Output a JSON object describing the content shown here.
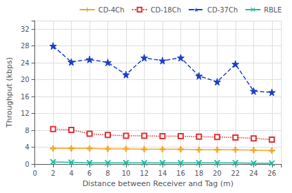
{
  "chart_data": {
    "type": "line",
    "xlabel": "Distance between Receiver and Tag (m)",
    "ylabel": "Throughput (kbps)",
    "x": [
      2,
      4,
      6,
      8,
      10,
      12,
      14,
      16,
      18,
      20,
      22,
      24,
      26
    ],
    "series": [
      {
        "name": "CD-4Ch",
        "color": "#f5a623",
        "marker": "plus",
        "line_style": "solid",
        "values": [
          3.7,
          3.7,
          3.7,
          3.6,
          3.6,
          3.5,
          3.5,
          3.5,
          3.4,
          3.4,
          3.4,
          3.3,
          3.2
        ]
      },
      {
        "name": "CD-18Ch",
        "color": "#e03030",
        "marker": "square",
        "line_style": "dotted",
        "values": [
          8.3,
          8.1,
          7.2,
          6.9,
          6.7,
          6.7,
          6.6,
          6.6,
          6.5,
          6.4,
          6.3,
          6.1,
          5.8
        ]
      },
      {
        "name": "CD-37Ch",
        "color": "#1a3fc4",
        "marker": "star",
        "line_style": "dashed",
        "values": [
          28.0,
          24.2,
          24.8,
          24.1,
          21.2,
          25.2,
          24.5,
          25.2,
          20.9,
          19.5,
          23.7,
          17.3,
          17.0
        ]
      },
      {
        "name": "RBLE",
        "color": "#20b8a0",
        "marker": "x",
        "line_style": "solid",
        "values": [
          0.5,
          0.4,
          0.3,
          0.3,
          0.3,
          0.3,
          0.3,
          0.3,
          0.3,
          0.3,
          0.3,
          0.2,
          0.2
        ]
      }
    ],
    "xlim": [
      0,
      27
    ],
    "ylim": [
      0,
      34
    ],
    "xticks": [
      0,
      2,
      4,
      6,
      8,
      10,
      12,
      14,
      16,
      18,
      20,
      22,
      24,
      26
    ],
    "yticks": [
      0,
      4,
      8,
      12,
      16,
      20,
      24,
      28,
      32
    ],
    "grid": true,
    "legend": "upper right"
  }
}
